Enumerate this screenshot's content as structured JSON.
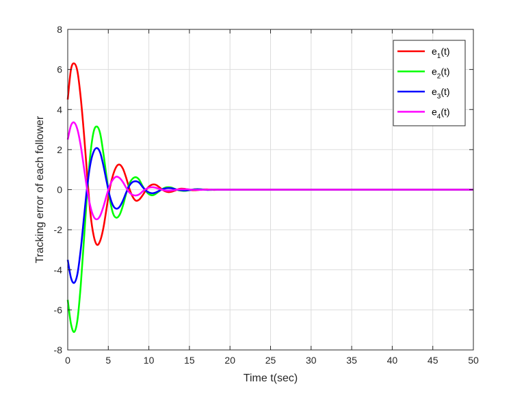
{
  "chart_data": {
    "type": "line",
    "xlabel": "Time t(sec)",
    "ylabel": "Tracking error of each follower",
    "xlim": [
      0,
      50
    ],
    "ylim": [
      -8,
      8
    ],
    "xticks": [
      0,
      5,
      10,
      15,
      20,
      25,
      30,
      35,
      40,
      45,
      50
    ],
    "yticks": [
      -8,
      -6,
      -4,
      -2,
      0,
      2,
      4,
      6,
      8
    ],
    "grid": true,
    "legend_position": "top-right",
    "series": [
      {
        "name": "e1(t)",
        "legend_base": "e",
        "legend_sub": "1",
        "legend_suffix": "(t)",
        "color": "#ff0000",
        "x": [
          0,
          0.4,
          0.8,
          1.2,
          1.6,
          2.0,
          2.4,
          2.8,
          3.2,
          3.6,
          4.0,
          4.4,
          4.8,
          5.2,
          5.6,
          6.0,
          6.4,
          6.8,
          7.2,
          7.6,
          8.0,
          8.4,
          8.8,
          9.2,
          9.6,
          10.0,
          10.4,
          10.8,
          11.2,
          11.6,
          12.0,
          12.4,
          12.8,
          13.2,
          13.6,
          14.0,
          14.4,
          14.8,
          15.2,
          15.6,
          16.0,
          16.4,
          16.8,
          17.2,
          17.6,
          18.0,
          18.4,
          18.8,
          19.2,
          19.6,
          20.0,
          21.0,
          22.0,
          23.0,
          24.0,
          25.0,
          26.0,
          27.0,
          28.0,
          30.0,
          35.0,
          40.0,
          45.0,
          50.0
        ],
        "y": [
          4.5,
          6.0,
          6.3,
          5.9,
          4.6,
          2.8,
          0.7,
          -1.2,
          -2.3,
          -2.75,
          -2.55,
          -1.9,
          -0.9,
          0.1,
          0.75,
          1.15,
          1.25,
          1.05,
          0.6,
          0.05,
          -0.35,
          -0.55,
          -0.5,
          -0.3,
          -0.05,
          0.15,
          0.25,
          0.25,
          0.15,
          0.02,
          -0.08,
          -0.12,
          -0.1,
          -0.05,
          0.02,
          0.05,
          0.04,
          0.01,
          -0.02,
          -0.03,
          -0.02,
          0.0,
          0.01,
          0.01,
          0.0,
          -0.01,
          0.0,
          0.0,
          0.0,
          0.0,
          0.0,
          0.0,
          0.0,
          0.0,
          0.0,
          0.0,
          0.0,
          0.0,
          0.0,
          0.0,
          0.0,
          0.0,
          0.0,
          0.0
        ]
      },
      {
        "name": "e2(t)",
        "legend_base": "e",
        "legend_sub": "2",
        "legend_suffix": "(t)",
        "color": "#00ff00",
        "x": [
          0,
          0.4,
          0.8,
          1.2,
          1.6,
          2.0,
          2.4,
          2.8,
          3.2,
          3.6,
          4.0,
          4.4,
          4.8,
          5.2,
          5.6,
          6.0,
          6.4,
          6.8,
          7.2,
          7.6,
          8.0,
          8.4,
          8.8,
          9.2,
          9.6,
          10.0,
          10.4,
          10.8,
          11.2,
          11.6,
          12.0,
          12.4,
          12.8,
          13.2,
          13.6,
          14.0,
          14.4,
          14.8,
          15.2,
          15.6,
          16.0,
          16.4,
          16.8,
          17.2,
          17.6,
          18.0,
          18.4,
          18.8,
          19.2,
          19.6,
          20.0,
          21.0,
          22.0,
          23.0,
          24.0,
          25.0,
          26.0,
          27.0,
          28.0,
          30.0,
          35.0,
          40.0,
          45.0,
          50.0
        ],
        "y": [
          -5.5,
          -6.7,
          -7.1,
          -6.5,
          -4.8,
          -2.5,
          -0.1,
          1.8,
          2.9,
          3.15,
          2.8,
          1.8,
          0.6,
          -0.5,
          -1.2,
          -1.4,
          -1.25,
          -0.8,
          -0.2,
          0.3,
          0.55,
          0.62,
          0.5,
          0.2,
          -0.05,
          -0.22,
          -0.28,
          -0.22,
          -0.1,
          0.02,
          0.1,
          0.12,
          0.1,
          0.04,
          -0.02,
          -0.05,
          -0.06,
          -0.04,
          -0.01,
          0.02,
          0.03,
          0.02,
          0.0,
          -0.01,
          -0.01,
          0.0,
          0.0,
          0.0,
          0.0,
          0.0,
          0.0,
          0.0,
          0.0,
          0.0,
          0.0,
          0.0,
          0.0,
          0.0,
          0.0,
          0.0,
          0.0,
          0.0,
          0.0,
          0.0
        ]
      },
      {
        "name": "e3(t)",
        "legend_base": "e",
        "legend_sub": "3",
        "legend_suffix": "(t)",
        "color": "#0000ff",
        "x": [
          0,
          0.4,
          0.8,
          1.2,
          1.6,
          2.0,
          2.4,
          2.8,
          3.2,
          3.6,
          4.0,
          4.4,
          4.8,
          5.2,
          5.6,
          6.0,
          6.4,
          6.8,
          7.2,
          7.6,
          8.0,
          8.4,
          8.8,
          9.2,
          9.6,
          10.0,
          10.4,
          10.8,
          11.2,
          11.6,
          12.0,
          12.4,
          12.8,
          13.2,
          13.6,
          14.0,
          14.4,
          14.8,
          15.2,
          15.6,
          16.0,
          16.4,
          16.8,
          17.2,
          17.6,
          18.0,
          18.4,
          18.8,
          19.2,
          19.6,
          20.0,
          21.0,
          22.0,
          23.0,
          24.0,
          25.0,
          26.0,
          27.0,
          28.0,
          30.0,
          35.0,
          40.0,
          45.0,
          50.0
        ],
        "y": [
          -3.5,
          -4.4,
          -4.65,
          -4.2,
          -3.0,
          -1.4,
          0.15,
          1.3,
          1.9,
          2.08,
          1.85,
          1.2,
          0.4,
          -0.35,
          -0.8,
          -0.95,
          -0.85,
          -0.55,
          -0.15,
          0.2,
          0.38,
          0.42,
          0.35,
          0.15,
          -0.03,
          -0.14,
          -0.18,
          -0.15,
          -0.07,
          0.01,
          0.06,
          0.08,
          0.07,
          0.03,
          -0.01,
          -0.03,
          -0.04,
          -0.03,
          -0.01,
          0.01,
          0.02,
          0.01,
          0.0,
          -0.01,
          0.0,
          0.0,
          0.0,
          0.0,
          0.0,
          0.0,
          0.0,
          0.0,
          0.0,
          0.0,
          0.0,
          0.0,
          0.0,
          0.0,
          0.0,
          0.0,
          0.0,
          0.0,
          0.0,
          0.0
        ]
      },
      {
        "name": "e4(t)",
        "legend_base": "e",
        "legend_sub": "4",
        "legend_suffix": "(t)",
        "color": "#ff00ff",
        "x": [
          0,
          0.4,
          0.8,
          1.2,
          1.6,
          2.0,
          2.4,
          2.8,
          3.2,
          3.6,
          4.0,
          4.4,
          4.8,
          5.2,
          5.6,
          6.0,
          6.4,
          6.8,
          7.2,
          7.6,
          8.0,
          8.4,
          8.8,
          9.2,
          9.6,
          10.0,
          10.4,
          10.8,
          11.2,
          11.6,
          12.0,
          12.4,
          12.8,
          13.2,
          13.6,
          14.0,
          14.4,
          14.8,
          15.2,
          15.6,
          16.0,
          16.4,
          16.8,
          17.2,
          17.6,
          18.0,
          18.4,
          18.8,
          19.2,
          19.6,
          20.0,
          21.0,
          22.0,
          23.0,
          24.0,
          25.0,
          26.0,
          27.0,
          28.0,
          30.0,
          35.0,
          40.0,
          45.0,
          50.0
        ],
        "y": [
          2.5,
          3.2,
          3.35,
          3.0,
          2.2,
          1.1,
          0.0,
          -0.85,
          -1.35,
          -1.48,
          -1.3,
          -0.85,
          -0.28,
          0.22,
          0.52,
          0.65,
          0.58,
          0.38,
          0.1,
          -0.14,
          -0.26,
          -0.29,
          -0.24,
          -0.1,
          0.02,
          0.1,
          0.12,
          0.1,
          0.05,
          0.0,
          -0.04,
          -0.05,
          -0.04,
          -0.02,
          0.01,
          0.02,
          0.02,
          0.02,
          0.0,
          -0.01,
          -0.01,
          -0.01,
          0.0,
          0.0,
          0.0,
          0.0,
          0.0,
          0.0,
          0.0,
          0.0,
          0.0,
          0.0,
          0.0,
          0.0,
          0.0,
          0.0,
          0.0,
          0.0,
          0.0,
          0.0,
          0.0,
          0.0,
          0.0,
          0.0
        ]
      }
    ]
  }
}
